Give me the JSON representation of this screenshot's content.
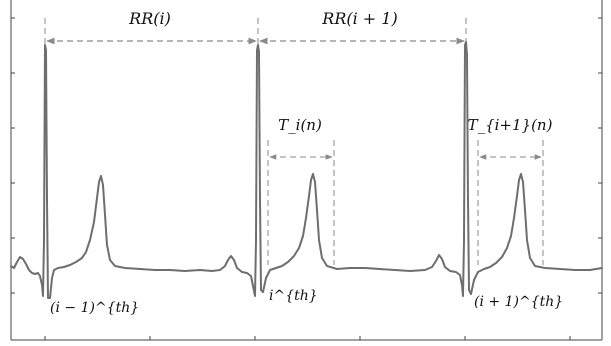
{
  "labels": {
    "rr_i": "RR(i)",
    "rr_i_plus_1": "RR(i + 1)",
    "t_i": "T_i(n)",
    "t_i_plus_1": "T_{i+1}(n)",
    "beat_prev": "(i − 1)^{th}",
    "beat_curr": "i^{th}",
    "beat_next": "(i + 1)^{th}"
  },
  "colors": {
    "signal": "#6e6e6e",
    "dashed": "#8a8a8a",
    "frame": "#444444",
    "text": "#111111"
  }
}
